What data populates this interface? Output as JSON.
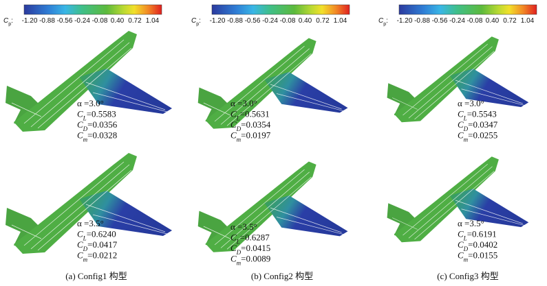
{
  "colorbars": [
    {
      "label": {
        "symbol": "C",
        "subscript": "p",
        "suffix": ":"
      },
      "ticks": [
        "-1.20",
        "-0.88",
        "-0.56",
        "-0.24",
        "-0.08",
        "0.40",
        "0.72",
        "1.04"
      ]
    },
    {
      "label": {
        "symbol": "C",
        "subscript": "p",
        "suffix": ":"
      },
      "ticks": [
        "-1.20",
        "-0.88",
        "-0.56",
        "-0.24",
        "-0.08",
        "0.40",
        "0.72",
        "1.04"
      ]
    },
    {
      "label": {
        "symbol": "C",
        "subscript": "p",
        "suffix": ":"
      },
      "ticks": [
        "-1.20",
        "-0.88",
        "-0.56",
        "-0.24",
        "-0.08",
        "0.40",
        "0.72",
        "1.04"
      ]
    }
  ],
  "panels": [
    {
      "alpha": "α =3.0°",
      "coefficients": [
        {
          "symbol": "C",
          "subscript": "L",
          "value": "=0.5583"
        },
        {
          "symbol": "C",
          "subscript": "D",
          "value": "=0.0356"
        },
        {
          "symbol": "C",
          "subscript": "m",
          "value": "=0.0328"
        }
      ]
    },
    {
      "alpha": "α =3.0°",
      "coefficients": [
        {
          "symbol": "C",
          "subscript": "L",
          "value": "=0.5631"
        },
        {
          "symbol": "C",
          "subscript": "D",
          "value": "=0.0354"
        },
        {
          "symbol": "C",
          "subscript": "m",
          "value": "=0.0197"
        }
      ]
    },
    {
      "alpha": "α =3.0°",
      "coefficients": [
        {
          "symbol": "C",
          "subscript": "L",
          "value": "=0.5543"
        },
        {
          "symbol": "C",
          "subscript": "D",
          "value": "=0.0347"
        },
        {
          "symbol": "C",
          "subscript": "m",
          "value": "=0.0255"
        }
      ]
    },
    {
      "alpha": "α =3.5°",
      "coefficients": [
        {
          "symbol": "C",
          "subscript": "L",
          "value": "=0.6240"
        },
        {
          "symbol": "C",
          "subscript": "D",
          "value": "=0.0417"
        },
        {
          "symbol": "C",
          "subscript": "m",
          "value": "=0.0212"
        }
      ]
    },
    {
      "alpha": "α =3.5°",
      "coefficients": [
        {
          "symbol": "C",
          "subscript": "L",
          "value": "=0.6287"
        },
        {
          "symbol": "C",
          "subscript": "D",
          "value": "=0.0415"
        },
        {
          "symbol": "C",
          "subscript": "m",
          "value": "=0.0089"
        }
      ]
    },
    {
      "alpha": "α =3.5°",
      "coefficients": [
        {
          "symbol": "C",
          "subscript": "L",
          "value": "=0.6191"
        },
        {
          "symbol": "C",
          "subscript": "D",
          "value": "=0.0402"
        },
        {
          "symbol": "C",
          "subscript": "m",
          "value": "=0.0155"
        }
      ]
    }
  ],
  "captions": [
    "(a) Config1 构型",
    "(b) Config2 构型",
    "(c) Config3 构型"
  ]
}
